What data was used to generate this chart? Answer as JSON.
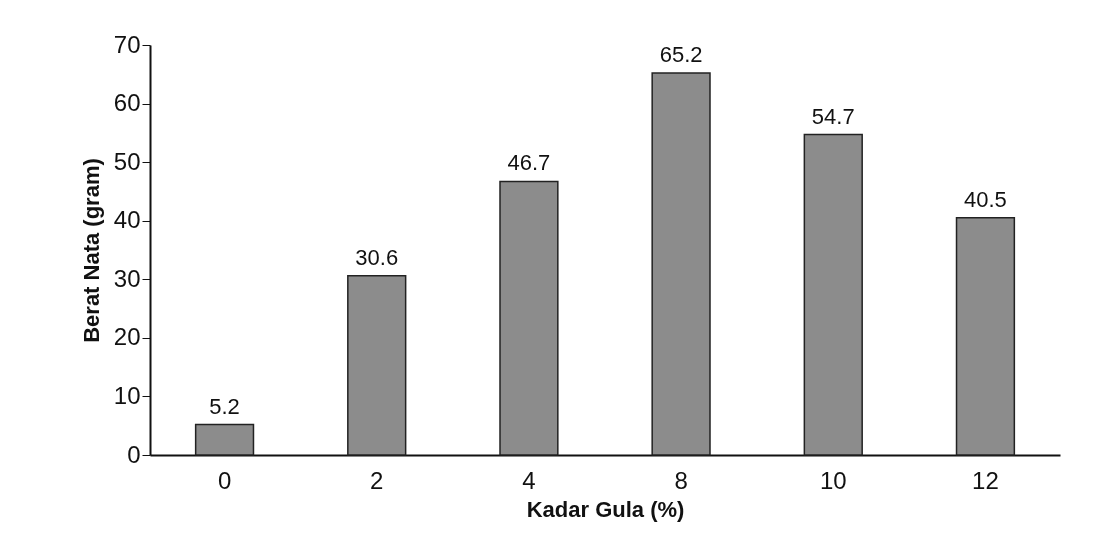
{
  "chart_data": {
    "type": "bar",
    "xlabel": "Kadar Gula (%)",
    "ylabel": "Berat Nata (gram)",
    "categories": [
      "0",
      "2",
      "4",
      "8",
      "10",
      "12"
    ],
    "values": [
      5.2,
      30.6,
      46.7,
      65.2,
      54.7,
      40.5
    ],
    "color": "#8c8c8c",
    "ylim": [
      0,
      70
    ],
    "yticks": [
      0,
      10,
      20,
      30,
      40,
      50,
      60,
      70
    ],
    "data_labels": true
  }
}
